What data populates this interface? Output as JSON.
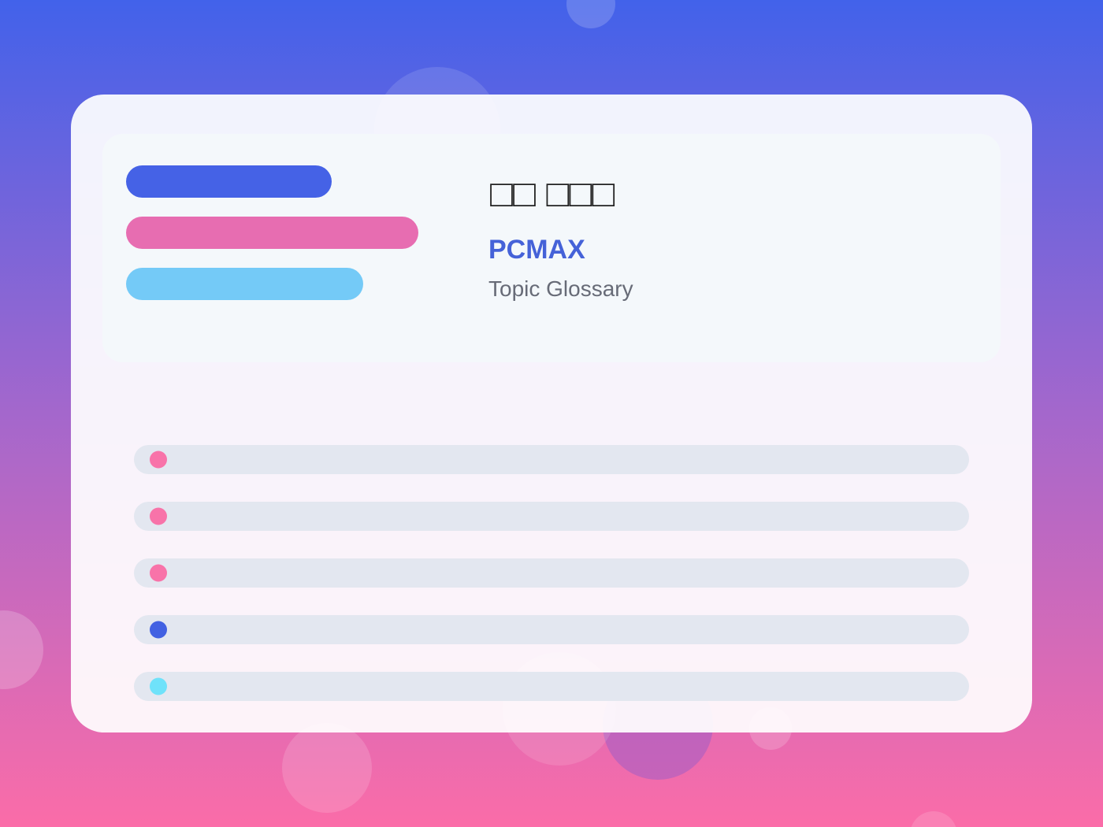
{
  "header": {
    "title": "□□ □□□",
    "brand": "PCMAX",
    "subtitle": "Topic Glossary"
  }
}
